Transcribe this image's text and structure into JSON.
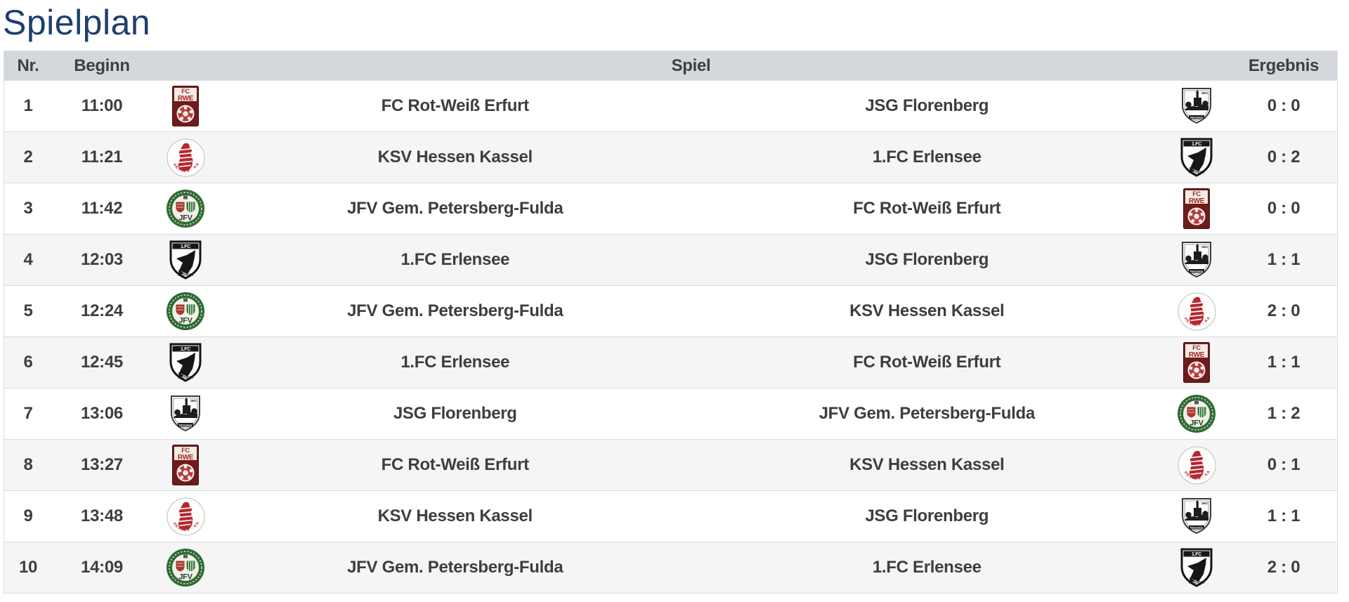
{
  "page": {
    "title": "Spielplan"
  },
  "theme": {
    "title_color": "#1f3e6e",
    "header_bg": "#d4d7db",
    "row_alt_bg": "#f5f5f6",
    "border": "#dcdcdc",
    "text": "#3e3e3e"
  },
  "table": {
    "headers": {
      "nr": "Nr.",
      "beginn": "Beginn",
      "spiel": "Spiel",
      "ergebnis": "Ergebnis"
    }
  },
  "logos": {
    "fc-rot-weiss-erfurt": "FC Rot-Weiß Erfurt crest (dark red shield, FC RWE lettering, white ball)",
    "ksv-hessen-kassel": "KSV Hessen Kassel crest (white circle, red striped Hessen lion)",
    "jfv-petersberg-fulda": "JFV Gem. Petersberg-Fulda crest (green ring, twin shields, JFV lettering)",
    "fc-erlensee": "1.FC Erlensee crest (black and white shield with bird swoosh)",
    "jsg-florenberg": "JSG Florenberg crest (white shield, black chapel-on-hill silhouette)"
  },
  "matches": [
    {
      "nr": "1",
      "time": "11:00",
      "home": "FC Rot-Weiß Erfurt",
      "home_logo": "fc-rot-weiss-erfurt",
      "away": "JSG Florenberg",
      "away_logo": "jsg-florenberg",
      "score": "0 : 0"
    },
    {
      "nr": "2",
      "time": "11:21",
      "home": "KSV Hessen Kassel",
      "home_logo": "ksv-hessen-kassel",
      "away": "1.FC Erlensee",
      "away_logo": "fc-erlensee",
      "score": "0 : 2"
    },
    {
      "nr": "3",
      "time": "11:42",
      "home": "JFV Gem. Petersberg-Fulda",
      "home_logo": "jfv-petersberg-fulda",
      "away": "FC Rot-Weiß Erfurt",
      "away_logo": "fc-rot-weiss-erfurt",
      "score": "0 : 0"
    },
    {
      "nr": "4",
      "time": "12:03",
      "home": "1.FC Erlensee",
      "home_logo": "fc-erlensee",
      "away": "JSG Florenberg",
      "away_logo": "jsg-florenberg",
      "score": "1 : 1"
    },
    {
      "nr": "5",
      "time": "12:24",
      "home": "JFV Gem. Petersberg-Fulda",
      "home_logo": "jfv-petersberg-fulda",
      "away": "KSV Hessen Kassel",
      "away_logo": "ksv-hessen-kassel",
      "score": "2 : 0"
    },
    {
      "nr": "6",
      "time": "12:45",
      "home": "1.FC Erlensee",
      "home_logo": "fc-erlensee",
      "away": "FC Rot-Weiß Erfurt",
      "away_logo": "fc-rot-weiss-erfurt",
      "score": "1 : 1"
    },
    {
      "nr": "7",
      "time": "13:06",
      "home": "JSG Florenberg",
      "home_logo": "jsg-florenberg",
      "away": "JFV Gem. Petersberg-Fulda",
      "away_logo": "jfv-petersberg-fulda",
      "score": "1 : 2"
    },
    {
      "nr": "8",
      "time": "13:27",
      "home": "FC Rot-Weiß Erfurt",
      "home_logo": "fc-rot-weiss-erfurt",
      "away": "KSV Hessen Kassel",
      "away_logo": "ksv-hessen-kassel",
      "score": "0 : 1"
    },
    {
      "nr": "9",
      "time": "13:48",
      "home": "KSV Hessen Kassel",
      "home_logo": "ksv-hessen-kassel",
      "away": "JSG Florenberg",
      "away_logo": "jsg-florenberg",
      "score": "1 : 1"
    },
    {
      "nr": "10",
      "time": "14:09",
      "home": "JFV Gem. Petersberg-Fulda",
      "home_logo": "jfv-petersberg-fulda",
      "away": "1.FC Erlensee",
      "away_logo": "fc-erlensee",
      "score": "2 : 0"
    }
  ]
}
